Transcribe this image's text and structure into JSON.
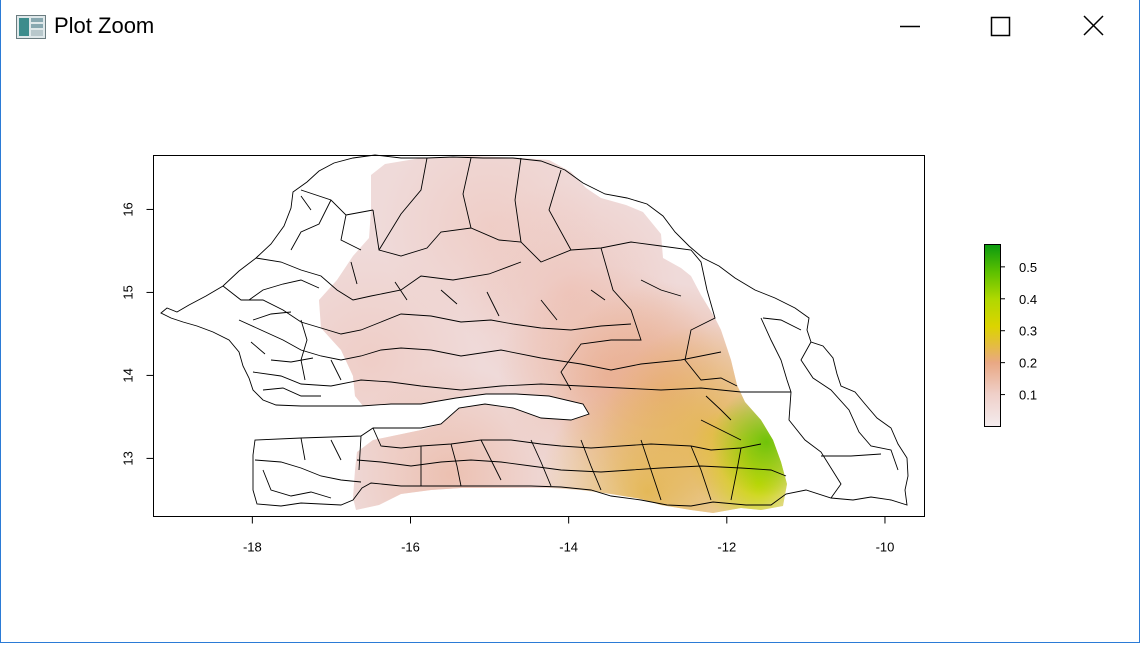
{
  "window": {
    "title": "Plot Zoom",
    "controls": {
      "minimize": "minimize",
      "maximize": "maximize",
      "close": "close"
    }
  },
  "chart_data": {
    "type": "heatmap",
    "title": "",
    "xlabel": "",
    "ylabel": "",
    "xlim": [
      -19.25,
      -9.5
    ],
    "ylim": [
      12.3,
      16.65
    ],
    "x_ticks": [
      "-18",
      "-16",
      "-14",
      "-12",
      "-10"
    ],
    "y_ticks": [
      "13",
      "14",
      "15",
      "16"
    ],
    "x_tick_values": [
      -18,
      -16,
      -14,
      -12,
      -10
    ],
    "y_tick_values": [
      13,
      14,
      15,
      16
    ],
    "legend": {
      "position": "right",
      "labels": [
        "0.1",
        "0.2",
        "0.3",
        "0.4",
        "0.5"
      ],
      "values": [
        0.1,
        0.2,
        0.3,
        0.4,
        0.5
      ],
      "range": [
        0.0,
        0.57
      ],
      "colors": [
        "#f2e6e8",
        "#eec8c0",
        "#e8a57e",
        "#e2c23a",
        "#d8df00",
        "#8ad000",
        "#10a010"
      ]
    },
    "raster_value_range": [
      0.0,
      0.57
    ],
    "gradient_description_points": [
      {
        "x": -15.0,
        "y": 15.8,
        "value": 0.08
      },
      {
        "x": -14.0,
        "y": 15.0,
        "value": 0.1
      },
      {
        "x": -16.5,
        "y": 14.2,
        "value": 0.08
      },
      {
        "x": -13.5,
        "y": 14.0,
        "value": 0.14
      },
      {
        "x": -12.8,
        "y": 13.8,
        "value": 0.18
      },
      {
        "x": -12.2,
        "y": 13.3,
        "value": 0.25
      },
      {
        "x": -11.8,
        "y": 13.0,
        "value": 0.32
      },
      {
        "x": -11.6,
        "y": 12.7,
        "value": 0.4
      },
      {
        "x": -11.5,
        "y": 13.2,
        "value": 0.5
      },
      {
        "x": -15.5,
        "y": 12.8,
        "value": 0.12
      },
      {
        "x": -13.0,
        "y": 12.6,
        "value": 0.25
      }
    ]
  }
}
